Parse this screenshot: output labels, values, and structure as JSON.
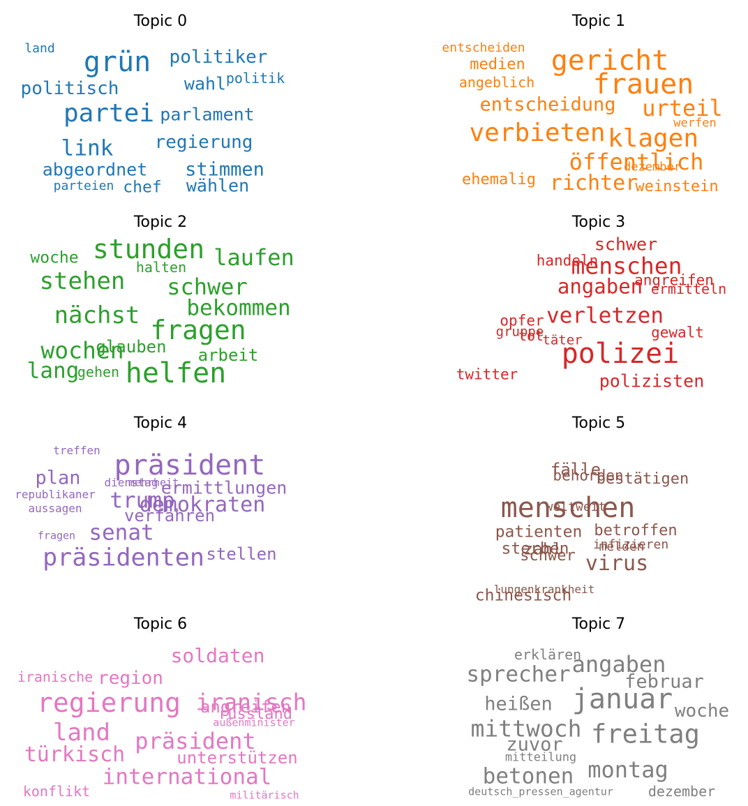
{
  "chart_data": [
    {
      "type": "wordcloud",
      "title": "Topic 0",
      "color": "#1f77b4",
      "words": [
        {
          "text": "grün",
          "size": 40
        },
        {
          "text": "partei",
          "size": 36
        },
        {
          "text": "link",
          "size": 31
        },
        {
          "text": "politiker",
          "size": 26
        },
        {
          "text": "regierung",
          "size": 26
        },
        {
          "text": "politisch",
          "size": 26
        },
        {
          "text": "parlament",
          "size": 25
        },
        {
          "text": "stimmen",
          "size": 27
        },
        {
          "text": "abgeordnet",
          "size": 25
        },
        {
          "text": "wahl",
          "size": 25
        },
        {
          "text": "wählen",
          "size": 25
        },
        {
          "text": "chef",
          "size": 23
        },
        {
          "text": "politik",
          "size": 20
        },
        {
          "text": "land",
          "size": 18
        },
        {
          "text": "parteien",
          "size": 18
        }
      ]
    },
    {
      "type": "wordcloud",
      "title": "Topic 1",
      "color": "#ff7f0e",
      "words": [
        {
          "text": "gericht",
          "size": 40
        },
        {
          "text": "frauen",
          "size": 40
        },
        {
          "text": "verbieten",
          "size": 36
        },
        {
          "text": "klagen",
          "size": 36
        },
        {
          "text": "urteil",
          "size": 32
        },
        {
          "text": "öffentlich",
          "size": 32
        },
        {
          "text": "richter",
          "size": 30
        },
        {
          "text": "entscheidung",
          "size": 27
        },
        {
          "text": "medien",
          "size": 22
        },
        {
          "text": "ehemalig",
          "size": 22
        },
        {
          "text": "weinstein",
          "size": 22
        },
        {
          "text": "angeblich",
          "size": 20
        },
        {
          "text": "entscheiden",
          "size": 18
        },
        {
          "text": "werfen",
          "size": 17
        },
        {
          "text": "dezember",
          "size": 17
        }
      ]
    },
    {
      "type": "wordcloud",
      "title": "Topic 2",
      "color": "#2ca02c",
      "words": [
        {
          "text": "stunden",
          "size": 38
        },
        {
          "text": "fragen",
          "size": 38
        },
        {
          "text": "helfen",
          "size": 40
        },
        {
          "text": "stehen",
          "size": 34
        },
        {
          "text": "nächst",
          "size": 34
        },
        {
          "text": "wochen",
          "size": 33
        },
        {
          "text": "schwer",
          "size": 32
        },
        {
          "text": "laufen",
          "size": 32
        },
        {
          "text": "bekommen",
          "size": 31
        },
        {
          "text": "lang",
          "size": 31
        },
        {
          "text": "glauben",
          "size": 24
        },
        {
          "text": "arbeit",
          "size": 24
        },
        {
          "text": "woche",
          "size": 23
        },
        {
          "text": "halten",
          "size": 20
        },
        {
          "text": "gehen",
          "size": 20
        }
      ]
    },
    {
      "type": "wordcloud",
      "title": "Topic 3",
      "color": "#d62728",
      "words": [
        {
          "text": "polizei",
          "size": 40
        },
        {
          "text": "menschen",
          "size": 33
        },
        {
          "text": "verletzen",
          "size": 31
        },
        {
          "text": "angaben",
          "size": 29
        },
        {
          "text": "schwer",
          "size": 25
        },
        {
          "text": "polizisten",
          "size": 25
        },
        {
          "text": "handeln",
          "size": 21
        },
        {
          "text": "angreifen",
          "size": 21
        },
        {
          "text": "gewalt",
          "size": 21
        },
        {
          "text": "twitter",
          "size": 21
        },
        {
          "text": "opfer",
          "size": 21
        },
        {
          "text": "ermitteln",
          "size": 20
        },
        {
          "text": "gruppe",
          "size": 19
        },
        {
          "text": "tot",
          "size": 20
        },
        {
          "text": "täter",
          "size": 19
        }
      ]
    },
    {
      "type": "wordcloud",
      "title": "Topic 4",
      "color": "#9467bd",
      "words": [
        {
          "text": "präsident",
          "size": 40
        },
        {
          "text": "präsidenten",
          "size": 35
        },
        {
          "text": "senat",
          "size": 31
        },
        {
          "text": "trump",
          "size": 31
        },
        {
          "text": "demokraten",
          "size": 30
        },
        {
          "text": "ermittlungen",
          "size": 25
        },
        {
          "text": "verfahren",
          "size": 24
        },
        {
          "text": "stellen",
          "size": 24
        },
        {
          "text": "plan",
          "size": 27
        },
        {
          "text": "republikaner",
          "size": 16
        },
        {
          "text": "aussagen",
          "size": 16
        },
        {
          "text": "dienstag",
          "size": 16
        },
        {
          "text": "treffen",
          "size": 16
        },
        {
          "text": "mehrheit",
          "size": 15
        },
        {
          "text": "fragen",
          "size": 15
        }
      ]
    },
    {
      "type": "wordcloud",
      "title": "Topic 5",
      "color": "#8c564b",
      "words": [
        {
          "text": "menschen",
          "size": 40
        },
        {
          "text": "virus",
          "size": 30
        },
        {
          "text": "sterben",
          "size": 23
        },
        {
          "text": "fälle",
          "size": 24
        },
        {
          "text": "chinesisch",
          "size": 23
        },
        {
          "text": "patienten",
          "size": 23
        },
        {
          "text": "zahl",
          "size": 23
        },
        {
          "text": "bestätigen",
          "size": 22
        },
        {
          "text": "behörden",
          "size": 21
        },
        {
          "text": "betroffen",
          "size": 22
        },
        {
          "text": "schwer",
          "size": 22
        },
        {
          "text": "infizieren",
          "size": 18
        },
        {
          "text": "weltweit",
          "size": 18
        },
        {
          "text": "melden",
          "size": 18
        },
        {
          "text": "lungenkrankheit",
          "size": 16
        }
      ]
    },
    {
      "type": "wordcloud",
      "title": "Topic 6",
      "color": "#e377c2",
      "words": [
        {
          "text": "regierung",
          "size": 38
        },
        {
          "text": "iranisch",
          "size": 33
        },
        {
          "text": "land",
          "size": 34
        },
        {
          "text": "präsident",
          "size": 32
        },
        {
          "text": "international",
          "size": 31
        },
        {
          "text": "türkisch",
          "size": 30
        },
        {
          "text": "soldaten",
          "size": 28
        },
        {
          "text": "region",
          "size": 26
        },
        {
          "text": "angreifen",
          "size": 24
        },
        {
          "text": "unterstützen",
          "size": 24
        },
        {
          "text": "russland",
          "size": 22
        },
        {
          "text": "iranische",
          "size": 20
        },
        {
          "text": "konflikt",
          "size": 20
        },
        {
          "text": "außenminister",
          "size": 15
        },
        {
          "text": "militärisch",
          "size": 15
        }
      ]
    },
    {
      "type": "wordcloud",
      "title": "Topic 7",
      "color": "#7f7f7f",
      "words": [
        {
          "text": "januar",
          "size": 40
        },
        {
          "text": "freitag",
          "size": 37
        },
        {
          "text": "mittwoch",
          "size": 33
        },
        {
          "text": "angaben",
          "size": 32
        },
        {
          "text": "montag",
          "size": 32
        },
        {
          "text": "sprecher",
          "size": 31
        },
        {
          "text": "betonen",
          "size": 31
        },
        {
          "text": "heißen",
          "size": 27
        },
        {
          "text": "zuvor",
          "size": 27
        },
        {
          "text": "februar",
          "size": 27
        },
        {
          "text": "woche",
          "size": 26
        },
        {
          "text": "erklären",
          "size": 20
        },
        {
          "text": "dezember",
          "size": 20
        },
        {
          "text": "mitteilung",
          "size": 17
        },
        {
          "text": "deutsch_pressen_agentur",
          "size": 15
        }
      ]
    }
  ]
}
